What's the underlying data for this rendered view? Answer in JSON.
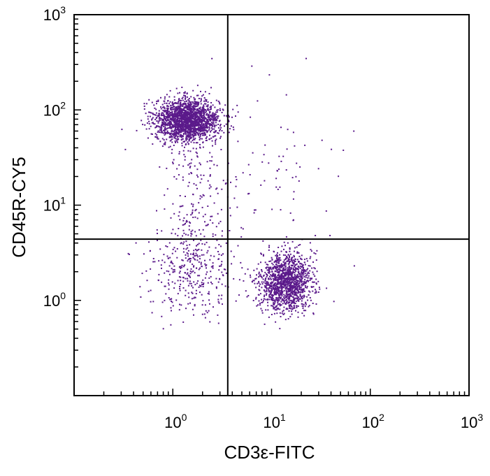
{
  "chart_data": {
    "type": "scatter",
    "xlabel": "CD3ε-FITC",
    "ylabel": "CD45R-CY5",
    "xscale": "log",
    "yscale": "log",
    "xlim": [
      0.1,
      1000
    ],
    "ylim": [
      0.1,
      1000
    ],
    "x_ticks": [
      {
        "base": "10",
        "exp": "0",
        "value": 1
      },
      {
        "base": "10",
        "exp": "1",
        "value": 10
      },
      {
        "base": "10",
        "exp": "2",
        "value": 100
      },
      {
        "base": "10",
        "exp": "3",
        "value": 1000
      }
    ],
    "y_ticks": [
      {
        "base": "10",
        "exp": "0",
        "value": 1
      },
      {
        "base": "10",
        "exp": "1",
        "value": 10
      },
      {
        "base": "10",
        "exp": "2",
        "value": 100
      },
      {
        "base": "10",
        "exp": "3",
        "value": 1000
      }
    ],
    "gates": {
      "x": 3.6,
      "y": 4.4
    },
    "grid": false,
    "point_color": "#5b1a8b",
    "populations": [
      {
        "center_x": 1.4,
        "center_y": 78,
        "spread_log_x": 0.16,
        "spread_log_y": 0.11,
        "count": 2000
      },
      {
        "center_x": 14,
        "center_y": 1.55,
        "spread_log_x": 0.13,
        "spread_log_y": 0.15,
        "count": 1400
      },
      {
        "center_x": 1.5,
        "center_y": 2.0,
        "spread_log_x": 0.22,
        "spread_log_y": 0.22,
        "count": 300
      },
      {
        "center_x": 1.8,
        "center_y": 10,
        "spread_log_x": 0.18,
        "spread_log_y": 0.4,
        "count": 220
      },
      {
        "center_x": 8,
        "center_y": 20,
        "spread_log_x": 0.4,
        "spread_log_y": 0.45,
        "count": 90
      }
    ]
  }
}
